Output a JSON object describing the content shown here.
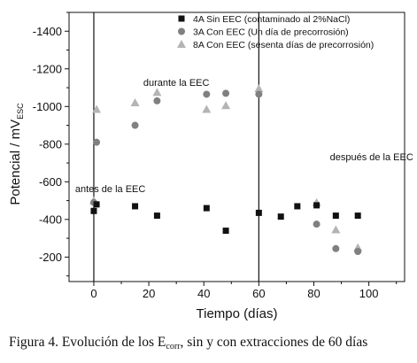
{
  "chart_data": {
    "type": "scatter",
    "xlabel": "Tiempo (días)",
    "ylabel": {
      "main": "Potencial / mV",
      "subscript": "ESC"
    },
    "xlim": [
      -9,
      113
    ],
    "ylim": [
      -1500,
      -70
    ],
    "x_ticks": [
      0,
      20,
      40,
      60,
      80,
      100
    ],
    "y_ticks": [
      -1400,
      -1200,
      -1000,
      -800,
      -600,
      -400,
      -200
    ],
    "legend_position": "top-right",
    "series": [
      {
        "name": "4A Sin EEC (contaminado al 2%NaCl)",
        "marker": "square",
        "color": "#111111",
        "x": [
          0,
          1,
          15,
          23,
          41,
          48,
          60,
          68,
          74,
          81,
          88,
          96
        ],
        "y": [
          -445,
          -480,
          -470,
          -420,
          -460,
          -340,
          -435,
          -415,
          -470,
          -475,
          -420,
          -420
        ]
      },
      {
        "name": "3A Con EEC (Un día de precorrosión)",
        "marker": "circle",
        "color": "#808080",
        "x": [
          0,
          1,
          15,
          23,
          41,
          48,
          60,
          81,
          88,
          96
        ],
        "y": [
          -490,
          -810,
          -900,
          -1030,
          -1065,
          -1070,
          -1065,
          -375,
          -245,
          -230
        ]
      },
      {
        "name": "8A Con EEC (sesenta días de precorrosión)",
        "marker": "triangle",
        "color": "#b4b4b4",
        "x": [
          0,
          1,
          15,
          23,
          41,
          48,
          60,
          81,
          88,
          96
        ],
        "y": [
          -500,
          -985,
          -1020,
          -1075,
          -985,
          -1005,
          -1095,
          -490,
          -345,
          -250
        ]
      }
    ],
    "vertical_lines": [
      0,
      60
    ],
    "annotations": [
      {
        "text": "antes de la EEC",
        "x": 6,
        "y": -545
      },
      {
        "text": "durante la EEC",
        "x": 30,
        "y": -1110
      },
      {
        "text": "después de la EEC",
        "x": 101,
        "y": -715
      }
    ]
  },
  "caption": {
    "prefix": "Figura 4.  Evolución de los E",
    "subscript": "corr",
    "suffix": ", sin y con extracciones de 60 días"
  }
}
